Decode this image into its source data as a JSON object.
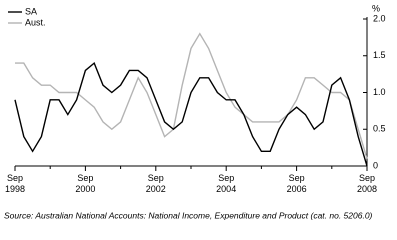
{
  "chart_data": {
    "type": "line",
    "y_label": "%",
    "categories": [
      "Sep 1998",
      null,
      null,
      null,
      null,
      null,
      null,
      null,
      "Sep 2000",
      null,
      null,
      null,
      null,
      null,
      null,
      null,
      "Sep 2002",
      null,
      null,
      null,
      null,
      null,
      null,
      null,
      "Sep 2004",
      null,
      null,
      null,
      null,
      null,
      null,
      null,
      "Sep 2006",
      null,
      null,
      null,
      null,
      null,
      null,
      null,
      "Sep 2008"
    ],
    "series": [
      {
        "name": "SA",
        "color": "#000000",
        "values": [
          0.9,
          0.4,
          0.2,
          0.4,
          0.9,
          0.9,
          0.7,
          0.9,
          1.3,
          1.4,
          1.1,
          1.0,
          1.1,
          1.3,
          1.3,
          1.2,
          0.9,
          0.6,
          0.5,
          0.6,
          1.0,
          1.2,
          1.2,
          1.0,
          0.9,
          0.9,
          0.7,
          0.4,
          0.2,
          0.2,
          0.5,
          0.7,
          0.8,
          0.7,
          0.5,
          0.6,
          1.1,
          1.2,
          0.9,
          0.4,
          0.0
        ]
      },
      {
        "name": "Aust.",
        "color": "#b4b4b4",
        "values": [
          1.4,
          1.4,
          1.2,
          1.1,
          1.1,
          1.0,
          1.0,
          1.0,
          0.9,
          0.8,
          0.6,
          0.5,
          0.6,
          0.9,
          1.2,
          1.0,
          0.7,
          0.4,
          0.5,
          1.1,
          1.6,
          1.8,
          1.6,
          1.3,
          1.0,
          0.8,
          0.7,
          0.6,
          0.6,
          0.6,
          0.6,
          0.7,
          0.9,
          1.2,
          1.2,
          1.1,
          1.0,
          1.0,
          0.9,
          0.5,
          0.1
        ]
      }
    ],
    "ylim": [
      0,
      2
    ],
    "yticks": [
      0,
      0.5,
      {
        "value": 1,
        "label": "1.0"
      },
      1.5,
      {
        "value": 2,
        "label": "2.0"
      }
    ],
    "legend": "top-left",
    "source": "Source: Australian National Accounts: National Income, Expenditure and Product  (cat. no. 5206.0)"
  }
}
